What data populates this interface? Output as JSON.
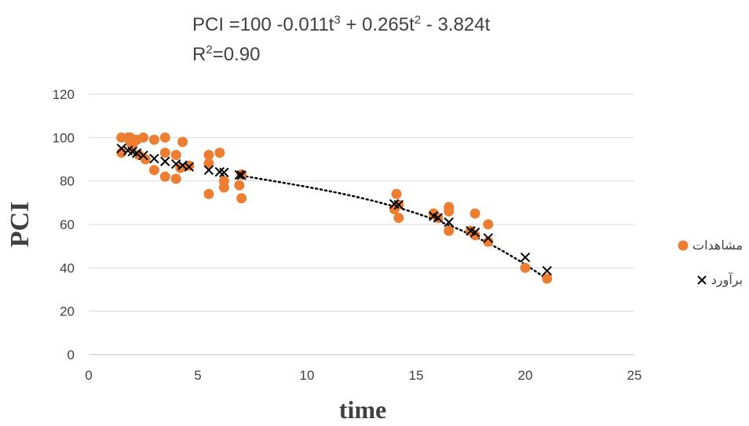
{
  "equation": {
    "prefix": "PCI =100 -0.011t",
    "exp3": "3",
    "mid1": " + 0.265t",
    "exp2": "2",
    "mid2": " - 3.824t",
    "r2_prefix": "R",
    "r2_exp": "2",
    "r2_value": "=0.90"
  },
  "colors": {
    "observed": "#ED7D31",
    "estimated": "#000000",
    "trend": "#000000",
    "grid": "#D9D9D9",
    "text": "#404040"
  },
  "chart_data": {
    "type": "scatter",
    "xlabel": "time",
    "ylabel": "PCI",
    "xlim": [
      0,
      25
    ],
    "ylim": [
      0,
      120
    ],
    "xticks": [
      0,
      5,
      10,
      15,
      20,
      25
    ],
    "yticks": [
      0,
      20,
      40,
      60,
      80,
      100,
      120
    ],
    "grid": "horizontal",
    "legend_position": "right",
    "series": [
      {
        "name": "مشاهدات",
        "marker": "circle",
        "points": [
          [
            1.5,
            100
          ],
          [
            1.8,
            100
          ],
          [
            1.9,
            100
          ],
          [
            1.5,
            93
          ],
          [
            1.9,
            98
          ],
          [
            2.2,
            99
          ],
          [
            2.5,
            100
          ],
          [
            2.0,
            96
          ],
          [
            2.3,
            92
          ],
          [
            2.6,
            90
          ],
          [
            3.0,
            99
          ],
          [
            3.5,
            100
          ],
          [
            3.0,
            85
          ],
          [
            3.5,
            93
          ],
          [
            3.5,
            82
          ],
          [
            4.0,
            92
          ],
          [
            4.0,
            81
          ],
          [
            4.3,
            98
          ],
          [
            4.2,
            86
          ],
          [
            4.6,
            87
          ],
          [
            5.5,
            92
          ],
          [
            6.0,
            93
          ],
          [
            5.5,
            74
          ],
          [
            5.5,
            88
          ],
          [
            6.2,
            80
          ],
          [
            6.2,
            77
          ],
          [
            6.9,
            78
          ],
          [
            7.0,
            83
          ],
          [
            7.0,
            72
          ],
          [
            14.0,
            67
          ],
          [
            14.1,
            74
          ],
          [
            14.2,
            63
          ],
          [
            14.2,
            69
          ],
          [
            15.8,
            65
          ],
          [
            16.0,
            63
          ],
          [
            16.5,
            68
          ],
          [
            16.5,
            66
          ],
          [
            16.5,
            57
          ],
          [
            17.5,
            57
          ],
          [
            17.7,
            55
          ],
          [
            17.7,
            65
          ],
          [
            18.3,
            60
          ],
          [
            18.3,
            52
          ],
          [
            20.0,
            40
          ],
          [
            21.0,
            35
          ]
        ]
      },
      {
        "name": "برآورد",
        "marker": "x",
        "points": [
          [
            1.5,
            95.0
          ],
          [
            1.8,
            94.0
          ],
          [
            2.0,
            93.5
          ],
          [
            2.2,
            92.8
          ],
          [
            2.5,
            91.8
          ],
          [
            3.0,
            90.3
          ],
          [
            3.5,
            89.0
          ],
          [
            4.0,
            87.8
          ],
          [
            4.3,
            87.2
          ],
          [
            4.6,
            86.5
          ],
          [
            5.5,
            85.0
          ],
          [
            6.0,
            84.2
          ],
          [
            6.2,
            83.9
          ],
          [
            6.9,
            82.8
          ],
          [
            7.0,
            82.6
          ],
          [
            14.0,
            69.4
          ],
          [
            14.2,
            69.0
          ],
          [
            15.8,
            63.8
          ],
          [
            16.0,
            63.0
          ],
          [
            16.5,
            61.0
          ],
          [
            17.5,
            57.0
          ],
          [
            17.7,
            56.3
          ],
          [
            18.3,
            53.7
          ],
          [
            20.0,
            44.8
          ],
          [
            21.0,
            38.6
          ]
        ]
      }
    ],
    "trendline": {
      "style": "dotted",
      "formula": "100 - 0.011t^3 + 0.265t^2 - 3.824t",
      "from": 7.0,
      "to": 21.0
    }
  }
}
